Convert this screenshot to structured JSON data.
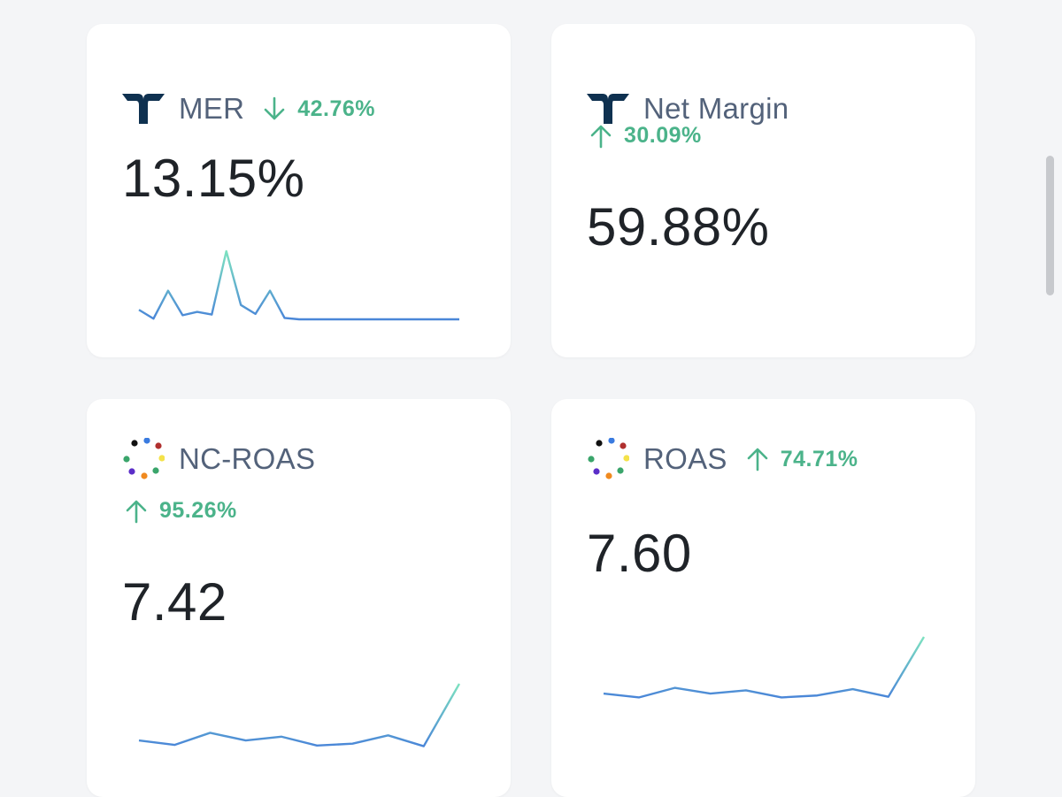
{
  "cards": [
    {
      "id": "mer",
      "title": "MER",
      "delta": "42.76%",
      "delta_direction": "down",
      "value": "13.15%",
      "source_icon": "triple-whale-logo-icon",
      "sparkline": [
        0.14,
        0.01,
        0.42,
        0.06,
        0.11,
        0.07,
        1.0,
        0.21,
        0.08,
        0.42,
        0.02,
        0.0,
        0.0,
        0.0,
        0.0,
        0.0,
        0.0,
        0.0,
        0.0,
        0.0,
        0.0,
        0.0,
        0.0
      ]
    },
    {
      "id": "net-margin",
      "title": "Net Margin",
      "delta": "30.09%",
      "delta_direction": "up",
      "value": "59.88%",
      "source_icon": "triple-whale-logo-icon"
    },
    {
      "id": "nc-roas",
      "title": "NC-ROAS",
      "delta": "95.26%",
      "delta_direction": "up",
      "value": "7.42",
      "source_icon": "colored-dots-logo-icon",
      "sparkline": [
        0.11,
        0.04,
        0.23,
        0.11,
        0.17,
        0.03,
        0.06,
        0.19,
        0.02,
        1.0
      ]
    },
    {
      "id": "roas",
      "title": "ROAS",
      "delta": "74.71%",
      "delta_direction": "up",
      "value": "7.60",
      "source_icon": "colored-dots-logo-icon",
      "sparkline": [
        0.11,
        0.05,
        0.2,
        0.11,
        0.16,
        0.05,
        0.08,
        0.18,
        0.06,
        1.0
      ]
    }
  ],
  "colors": {
    "positive": "#4bb38a",
    "line_start": "#4a86d8",
    "line_end": "#7de2c0",
    "title": "#53627a",
    "value": "#1f2328"
  }
}
